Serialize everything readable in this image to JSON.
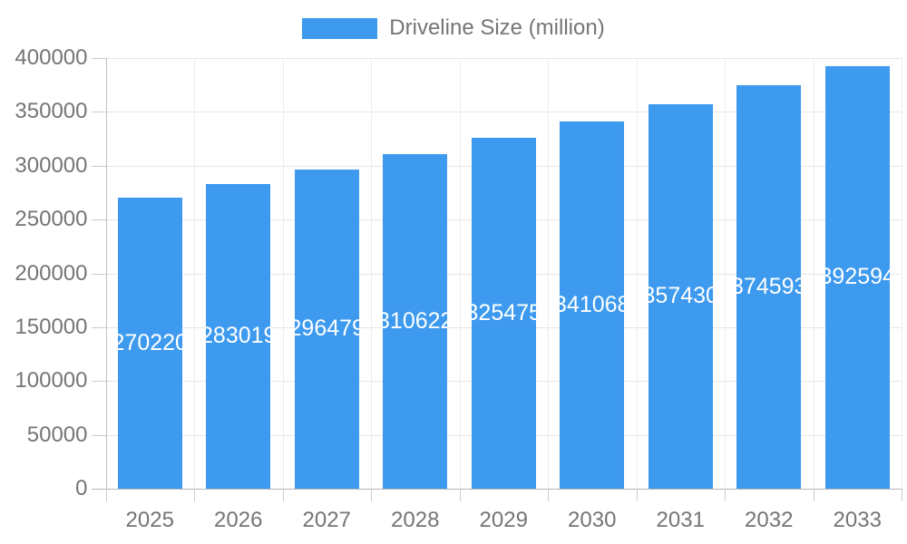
{
  "chart_data": {
    "type": "bar",
    "title": "",
    "legend_label": "Driveline Size (million)",
    "legend_position": "top-center",
    "categories": [
      "2025",
      "2026",
      "2027",
      "2028",
      "2029",
      "2030",
      "2031",
      "2032",
      "2033"
    ],
    "values": [
      270220,
      283019,
      296479,
      310622,
      325475,
      341068,
      357430,
      374593,
      392594
    ],
    "series": [
      {
        "name": "Driveline Size (million)",
        "values": [
          270220,
          283019,
          296479,
          310622,
          325475,
          341068,
          357430,
          374593,
          392594
        ]
      }
    ],
    "bar_value_labels": [
      "270220",
      "283019",
      "296479",
      "310622",
      "325475",
      "341068",
      "357430",
      "374593",
      "392594"
    ],
    "xlabel": "",
    "ylabel": "",
    "ylim": [
      0,
      400000
    ],
    "ytick_step": 50000,
    "ytick_labels": [
      "0",
      "50000",
      "100000",
      "150000",
      "200000",
      "250000",
      "300000",
      "350000",
      "400000"
    ],
    "grid": true,
    "colors": {
      "bar": "#3D9AEE",
      "bar_label_text": "#FFFFFF",
      "axis_text": "#757575",
      "gridline": "#E6E6E6",
      "vertical_gridline": "#ECECEC",
      "baseline": "#B5B5B5",
      "axis_line": "#C2C2C2",
      "tick": "#CCCCCC",
      "background": "#FFFFFF"
    }
  }
}
